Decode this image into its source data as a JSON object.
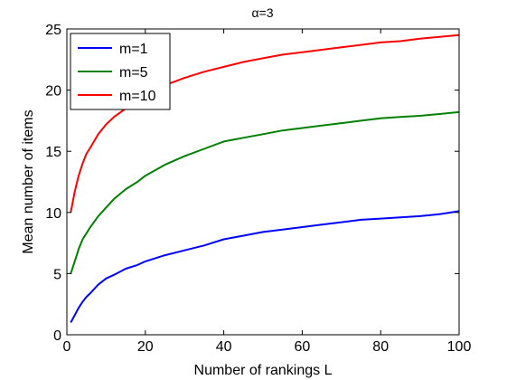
{
  "chart_data": {
    "type": "line",
    "title": "α=3",
    "xlabel": "Number of rankings L",
    "ylabel": "Mean number of items",
    "xlim": [
      0,
      100
    ],
    "ylim": [
      0,
      25
    ],
    "xticks": [
      0,
      20,
      40,
      60,
      80,
      100
    ],
    "yticks": [
      0,
      5,
      10,
      15,
      20,
      25
    ],
    "grid": false,
    "legend_position": "top-left",
    "x": [
      1,
      2,
      3,
      4,
      5,
      6,
      8,
      10,
      12,
      15,
      18,
      20,
      25,
      30,
      35,
      40,
      45,
      50,
      55,
      60,
      65,
      70,
      75,
      80,
      85,
      90,
      95,
      100
    ],
    "series": [
      {
        "name": "m=1",
        "color": "#0000ff",
        "values": [
          1.0,
          1.6,
          2.2,
          2.7,
          3.1,
          3.4,
          4.1,
          4.6,
          4.9,
          5.4,
          5.7,
          6.0,
          6.5,
          6.9,
          7.3,
          7.8,
          8.1,
          8.4,
          8.6,
          8.8,
          9.0,
          9.2,
          9.4,
          9.5,
          9.6,
          9.7,
          9.85,
          10.1
        ]
      },
      {
        "name": "m=5",
        "color": "#008000",
        "values": [
          5.0,
          6.0,
          7.0,
          7.8,
          8.3,
          8.8,
          9.7,
          10.4,
          11.1,
          11.9,
          12.5,
          13.0,
          13.9,
          14.6,
          15.2,
          15.8,
          16.1,
          16.4,
          16.7,
          16.9,
          17.1,
          17.3,
          17.5,
          17.7,
          17.8,
          17.9,
          18.05,
          18.2
        ]
      },
      {
        "name": "m=10",
        "color": "#ff0000",
        "values": [
          10.0,
          11.7,
          13.0,
          14.0,
          14.8,
          15.3,
          16.4,
          17.2,
          17.8,
          18.5,
          19.1,
          19.4,
          20.4,
          21.0,
          21.5,
          21.9,
          22.3,
          22.6,
          22.9,
          23.1,
          23.3,
          23.5,
          23.7,
          23.9,
          24.0,
          24.2,
          24.35,
          24.5
        ]
      }
    ]
  }
}
